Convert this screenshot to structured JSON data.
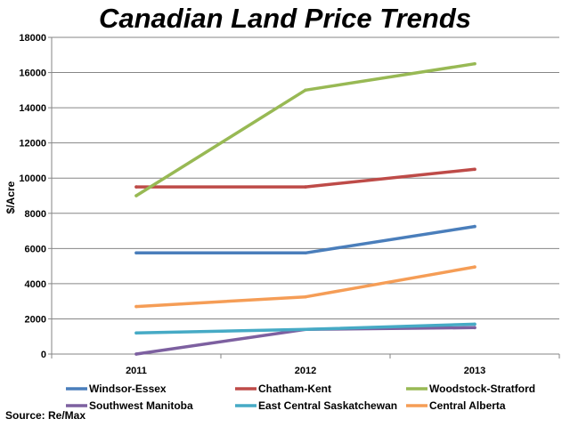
{
  "chart_data": {
    "type": "line",
    "title": "Canadian Land Price Trends",
    "ylabel": "$/Acre",
    "xlabel": "",
    "x": [
      "2011",
      "2012",
      "2013"
    ],
    "ylim": [
      0,
      18000
    ],
    "yticks": [
      0,
      2000,
      4000,
      6000,
      8000,
      10000,
      12000,
      14000,
      16000,
      18000
    ],
    "grid": true,
    "legend_position": "bottom",
    "series": [
      {
        "name": "Windsor-Essex",
        "color": "#4a7ebb",
        "values": [
          5750,
          5750,
          7250
        ]
      },
      {
        "name": "Chatham-Kent",
        "color": "#be4b48",
        "values": [
          9500,
          9500,
          10500
        ]
      },
      {
        "name": "Woodstock-Stratford",
        "color": "#98b954",
        "values": [
          9000,
          15000,
          16500
        ]
      },
      {
        "name": "Southwest Manitoba",
        "color": "#7d60a0",
        "values": [
          0,
          1400,
          1500
        ]
      },
      {
        "name": "East Central Saskatchewan",
        "color": "#46aac5",
        "values": [
          1200,
          1400,
          1700
        ]
      },
      {
        "name": "Central Alberta",
        "color": "#f59d56",
        "values": [
          2700,
          3250,
          4950
        ]
      }
    ],
    "source": "Source: Re/Max"
  }
}
